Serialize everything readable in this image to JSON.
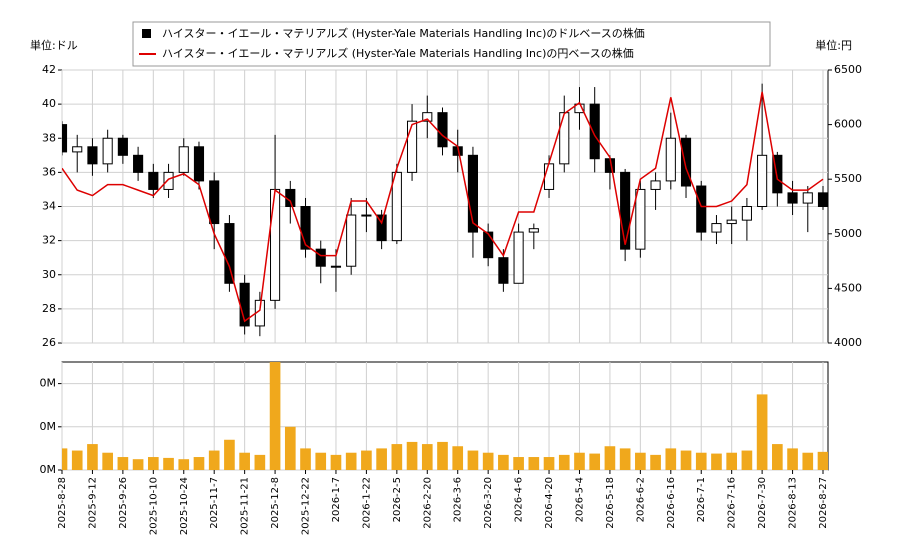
{
  "chart_data": [
    {
      "type": "candlestick",
      "ylabel": "単位:ドル",
      "y2label": "単位:円",
      "legend": "upper center",
      "grid": true,
      "ylim": [
        26,
        42
      ],
      "yticks": [
        26,
        28,
        30,
        32,
        34,
        36,
        38,
        40,
        42
      ],
      "y2lim": [
        4000,
        6500
      ],
      "y2ticks": [
        4000,
        4500,
        5000,
        5500,
        6000,
        6500
      ],
      "series": [
        {
          "name": "ハイスター・イエール・マテリアルズ (Hyster-Yale Materials Handling Inc)のドルベースの株価",
          "up_color": "#ffffff",
          "down_color": "#000000",
          "edge_color": "#000000",
          "open": [
            38.8,
            37.2,
            37.5,
            36.5,
            38,
            37,
            36,
            35,
            36,
            37.5,
            35.5,
            33,
            29.5,
            27,
            28.5,
            35,
            34,
            31.5,
            30.5,
            30.5,
            33.5,
            33.5,
            32,
            36,
            39,
            39.5,
            37.5,
            37,
            32.5,
            31,
            29.5,
            32.5,
            35,
            36.5,
            39.5,
            40,
            36.8,
            36,
            31.5,
            35,
            35.5,
            38,
            35.2,
            32.5,
            33,
            33.2,
            34,
            37,
            34.8,
            34.2,
            34.8
          ],
          "high": [
            39,
            38.2,
            38,
            38.5,
            38.2,
            37.5,
            36.5,
            36.5,
            38,
            37.8,
            36,
            33.5,
            30,
            29,
            38.2,
            35.5,
            34.5,
            32,
            31.5,
            34.5,
            34.5,
            33.8,
            36.5,
            40,
            40.5,
            39.8,
            38.5,
            37.5,
            33,
            31.5,
            33,
            33,
            37,
            40.5,
            41,
            41,
            37,
            36.2,
            35.5,
            36,
            39.5,
            38.2,
            35.5,
            33.5,
            34,
            34.5,
            41.2,
            37.2,
            35.5,
            35.2,
            35.2
          ],
          "low": [
            37,
            36,
            35.8,
            36,
            36.5,
            35.5,
            34.5,
            34.5,
            35.8,
            35,
            31.5,
            29,
            26.5,
            26.4,
            28,
            33,
            31,
            29.5,
            29,
            30,
            32.5,
            31.5,
            31.8,
            35.5,
            38,
            37,
            36,
            31,
            30.5,
            29,
            29.5,
            31.5,
            34.5,
            36,
            38.5,
            36,
            35,
            30.8,
            31,
            33.8,
            35,
            34.5,
            32,
            31.8,
            31.8,
            32,
            33.8,
            34,
            33.5,
            32.5,
            33.8
          ],
          "close": [
            37.2,
            37.5,
            36.5,
            38,
            37,
            36,
            35,
            36,
            37.5,
            35.5,
            33,
            29.5,
            27,
            28.5,
            35,
            34,
            31.5,
            30.5,
            30.5,
            33.5,
            33.5,
            32,
            36,
            39,
            39.5,
            37.5,
            37,
            32.5,
            31,
            29.5,
            32.5,
            32.7,
            36.5,
            39.5,
            40,
            36.8,
            36,
            31.5,
            35,
            35.5,
            38,
            35.2,
            32.5,
            33,
            33.2,
            34,
            37,
            34.8,
            34.2,
            34.8,
            34
          ]
        },
        {
          "name": "ハイスター・イエール・マテリアルズ (Hyster-Yale Materials Handling Inc)の円ベースの株価",
          "color": "#dd0000",
          "axis": "y2",
          "values": [
            5600,
            5400,
            5350,
            5450,
            5450,
            5400,
            5350,
            5500,
            5550,
            5450,
            5000,
            4700,
            4200,
            4300,
            5400,
            5300,
            4900,
            4800,
            4800,
            5300,
            5300,
            5100,
            5600,
            6000,
            6050,
            5900,
            5800,
            5100,
            5000,
            4800,
            5200,
            5200,
            5650,
            6100,
            6200,
            5900,
            5700,
            4900,
            5500,
            5600,
            6250,
            5600,
            5250,
            5250,
            5300,
            5450,
            6300,
            5500,
            5400,
            5400,
            5500
          ]
        }
      ]
    },
    {
      "type": "bar",
      "color": "#f0a81c",
      "grid": true,
      "ylim": [
        0,
        250000
      ],
      "yticks": [
        {
          "value": 0,
          "label": "0M"
        },
        {
          "value": 100000,
          "label": "0M"
        },
        {
          "value": 200000,
          "label": "0M"
        }
      ],
      "categories": [
        "2025-8-28",
        null,
        "2025-9-12",
        null,
        "2025-9-26",
        null,
        "2025-10-10",
        null,
        "2025-10-24",
        null,
        "2025-11-7",
        null,
        "2025-11-21",
        null,
        "2025-12-8",
        null,
        "2025-12-22",
        null,
        "2026-1-7",
        null,
        "2026-1-22",
        null,
        "2026-2-5",
        null,
        "2026-2-20",
        null,
        "2026-3-6",
        null,
        "2026-3-20",
        null,
        "2026-4-6",
        null,
        "2026-4-20",
        null,
        "2026-5-4",
        null,
        "2026-5-18",
        null,
        "2026-6-2",
        null,
        "2026-6-16",
        null,
        "2026-7-1",
        null,
        "2026-7-16",
        null,
        "2026-7-30",
        null,
        "2026-8-13",
        null,
        "2026-8-27"
      ],
      "values": [
        50000,
        45000,
        60000,
        40000,
        30000,
        25000,
        30000,
        28000,
        25000,
        30000,
        45000,
        70000,
        40000,
        35000,
        270000,
        100000,
        50000,
        40000,
        35000,
        40000,
        45000,
        50000,
        60000,
        65000,
        60000,
        65000,
        55000,
        45000,
        40000,
        35000,
        30000,
        30000,
        30000,
        35000,
        40000,
        38000,
        55000,
        50000,
        40000,
        35000,
        50000,
        45000,
        40000,
        38000,
        40000,
        45000,
        175000,
        60000,
        50000,
        40000,
        42000
      ]
    }
  ]
}
